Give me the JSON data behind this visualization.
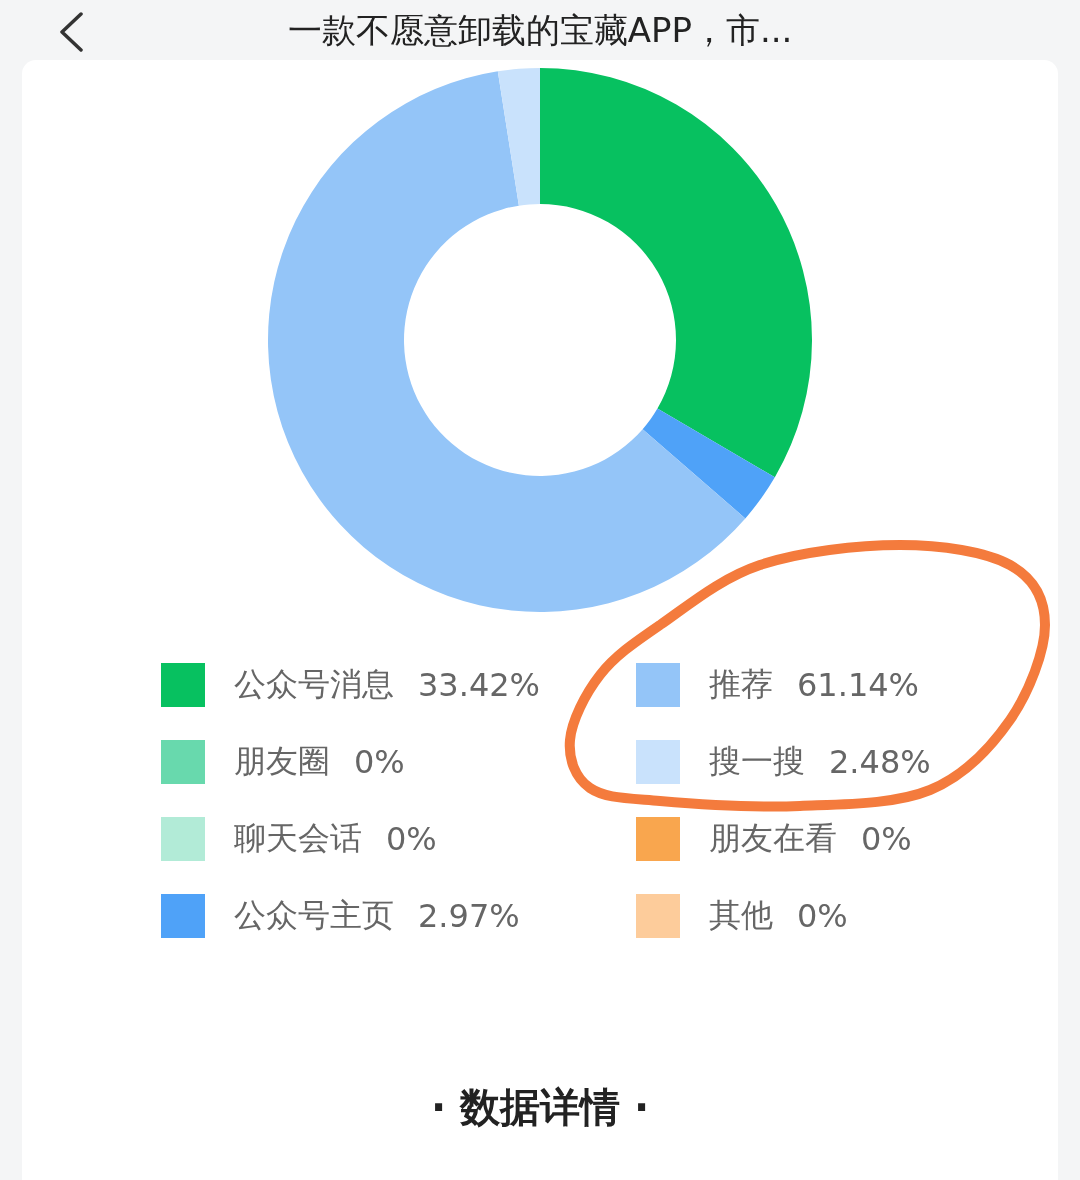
{
  "chart_data": {
    "type": "donut",
    "title": "一款不愿意卸载的宝藏APP，市...",
    "categories": [
      "公众号消息",
      "朋友圈",
      "聊天会话",
      "公众号主页",
      "推荐",
      "搜一搜",
      "朋友在看",
      "其他"
    ],
    "values": [
      33.42,
      0,
      0,
      2.97,
      61.14,
      2.48,
      0,
      0
    ],
    "colors": [
      "#07c160",
      "#68d9ad",
      "#b2ebd7",
      "#4fa2f8",
      "#94c5f8",
      "#c9e2fc",
      "#f9a64e",
      "#fdcc9b"
    ],
    "value_labels": [
      "33.42%",
      "0%",
      "0%",
      "2.97%",
      "61.14%",
      "2.48%",
      "0%",
      "0%"
    ],
    "legend": "bottom",
    "annotations": [
      "· 数据详情 ·"
    ]
  }
}
